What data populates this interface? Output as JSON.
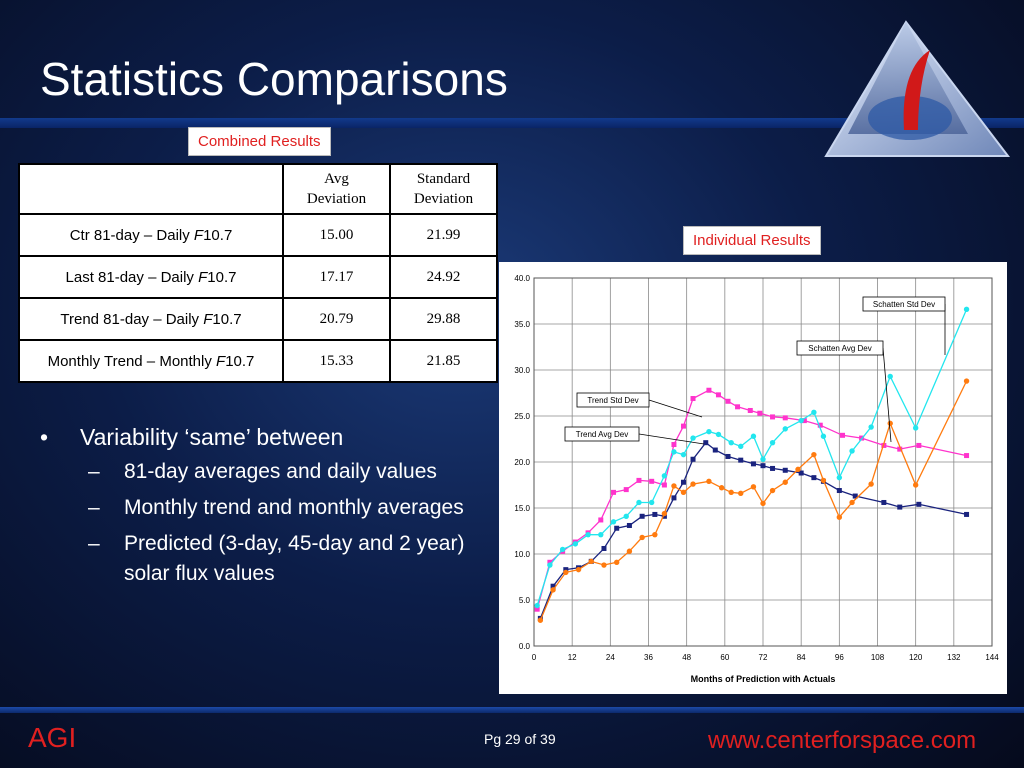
{
  "slide": {
    "title": "Statistics Comparisons",
    "combined_label": "Combined Results",
    "individual_label": "Individual Results",
    "footer_left": "AGI",
    "footer_page": "Pg 29 of 39",
    "footer_url": "www.centerforspace.com"
  },
  "table": {
    "headers": [
      "",
      "Avg Deviation",
      "Standard Deviation"
    ],
    "header_lines": [
      [
        "Avg",
        "Deviation"
      ],
      [
        "Standard",
        "Deviation"
      ]
    ],
    "rows": [
      {
        "prefix": "Ctr 81-day – Daily ",
        "italic": "F",
        "suffix": "10.7",
        "avg": "15.00",
        "std": "21.99"
      },
      {
        "prefix": "Last 81-day – Daily ",
        "italic": "F",
        "suffix": "10.7",
        "avg": "17.17",
        "std": "24.92"
      },
      {
        "prefix": "Trend 81-day – Daily ",
        "italic": "F",
        "suffix": "10.7",
        "avg": "20.79",
        "std": "29.88"
      },
      {
        "prefix": "Monthly Trend – Monthly ",
        "italic": "F",
        "suffix": "10.7",
        "avg": "15.33",
        "std": "21.85"
      }
    ]
  },
  "bullets": {
    "main": "Variability ‘same’ between",
    "subs": [
      "81-day averages and daily values",
      "Monthly trend and monthly averages",
      "Predicted (3-day, 45-day and 2 year) solar flux values"
    ]
  },
  "chart_data": {
    "type": "line",
    "title": "",
    "xlabel": "Months of Prediction with Actuals",
    "ylabel": "",
    "xlim": [
      0,
      144
    ],
    "ylim": [
      0,
      40
    ],
    "xticks": [
      0,
      12,
      24,
      36,
      48,
      60,
      72,
      84,
      96,
      108,
      120,
      132,
      144
    ],
    "xtick_labels": [
      "0",
      "12",
      "24",
      "36",
      "48",
      "60",
      "72",
      "84",
      "96",
      "108",
      "120",
      "132",
      "144"
    ],
    "yticks": [
      0,
      5,
      10,
      15,
      20,
      25,
      30,
      35,
      40
    ],
    "ytick_labels": [
      "0.0",
      "5.0",
      "10.0",
      "15.0",
      "20.0",
      "25.0",
      "30.0",
      "35.0",
      "40.0"
    ],
    "grid": true,
    "series": [
      {
        "name": "Trend Avg Dev",
        "color": "#1a237e",
        "marker": "square",
        "x": [
          2,
          6,
          10,
          14,
          18,
          22,
          26,
          30,
          34,
          38,
          41,
          44,
          47,
          50,
          54,
          57,
          61,
          65,
          69,
          72,
          75,
          79,
          84,
          88,
          91,
          96,
          101,
          110,
          115,
          121,
          136
        ],
        "y": [
          3.0,
          6.5,
          8.3,
          8.5,
          9.2,
          10.6,
          12.8,
          13.1,
          14.1,
          14.3,
          14.1,
          16.1,
          17.8,
          20.3,
          22.1,
          21.3,
          20.6,
          20.2,
          19.8,
          19.6,
          19.3,
          19.1,
          18.8,
          18.3,
          17.9,
          16.9,
          16.3,
          15.6,
          15.1,
          15.4,
          14.3
        ]
      },
      {
        "name": "Trend Std Dev",
        "color": "#ff33cc",
        "marker": "square",
        "x": [
          1,
          5,
          9,
          13,
          17,
          21,
          25,
          29,
          33,
          37,
          41,
          44,
          47,
          50,
          55,
          58,
          61,
          64,
          68,
          71,
          75,
          79,
          85,
          90,
          97,
          103,
          110,
          115,
          121,
          136
        ],
        "y": [
          4.0,
          9.1,
          10.3,
          11.3,
          12.3,
          13.7,
          16.7,
          17.0,
          18.0,
          17.9,
          17.5,
          21.9,
          23.9,
          26.9,
          27.8,
          27.3,
          26.6,
          26.0,
          25.6,
          25.3,
          24.9,
          24.8,
          24.5,
          24.0,
          22.9,
          22.6,
          21.8,
          21.4,
          21.8,
          20.7
        ]
      },
      {
        "name": "Schatten Avg Dev",
        "color": "#ff7b0f",
        "marker": "circle",
        "x": [
          2,
          6,
          10,
          14,
          18,
          22,
          26,
          30,
          34,
          38,
          41,
          44,
          47,
          50,
          55,
          59,
          62,
          65,
          69,
          72,
          75,
          79,
          83,
          88,
          91,
          96,
          100,
          106,
          112,
          120,
          136
        ],
        "y": [
          2.8,
          6.1,
          8.0,
          8.3,
          9.2,
          8.8,
          9.1,
          10.3,
          11.8,
          12.1,
          14.4,
          17.4,
          16.7,
          17.6,
          17.9,
          17.2,
          16.7,
          16.6,
          17.3,
          15.5,
          16.9,
          17.8,
          19.2,
          20.8,
          18.0,
          14.0,
          15.6,
          17.6,
          24.2,
          17.5,
          28.8
        ]
      },
      {
        "name": "Schatten Std Dev",
        "color": "#22e6ee",
        "marker": "circle",
        "x": [
          1,
          5,
          9,
          13,
          17,
          21,
          25,
          29,
          33,
          37,
          41,
          44,
          47,
          50,
          55,
          58,
          62,
          65,
          69,
          72,
          75,
          79,
          84,
          88,
          91,
          96,
          100,
          106,
          112,
          120,
          136
        ],
        "y": [
          4.4,
          8.8,
          10.5,
          11.1,
          12.1,
          12.1,
          13.5,
          14.1,
          15.6,
          15.6,
          18.5,
          21.1,
          20.8,
          22.6,
          23.3,
          23.0,
          22.1,
          21.7,
          22.8,
          20.3,
          22.1,
          23.6,
          24.5,
          25.4,
          22.8,
          18.3,
          21.2,
          23.8,
          29.3,
          23.7,
          36.6
        ]
      }
    ],
    "annotations": [
      "Schatten Std Dev",
      "Schatten Avg Dev",
      "Trend Std Dev",
      "Trend Avg Dev"
    ]
  }
}
